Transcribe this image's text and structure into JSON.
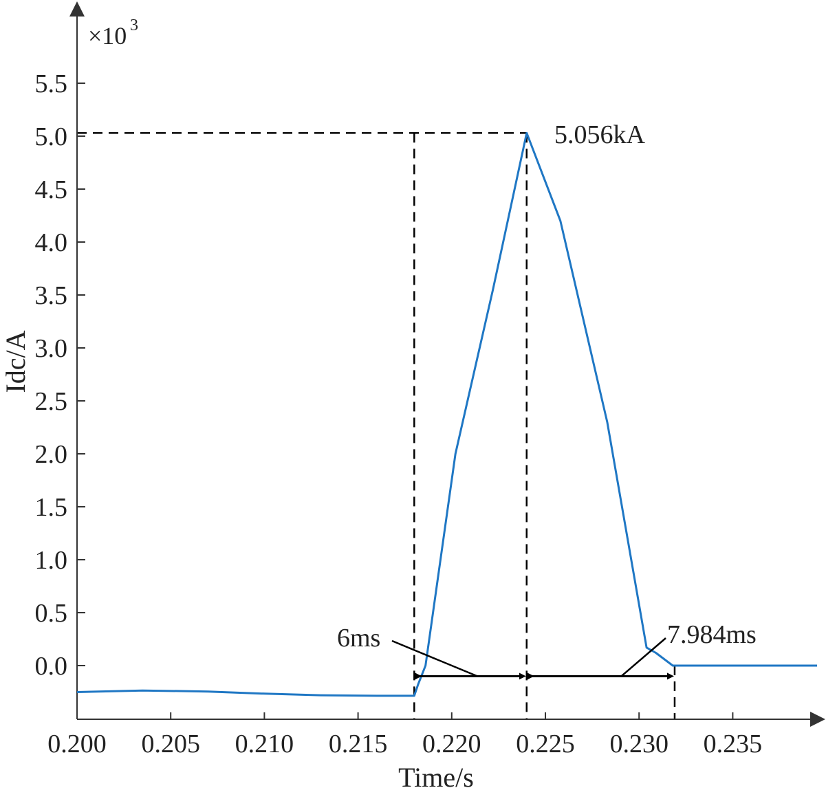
{
  "chart_data": {
    "type": "line",
    "xlabel": "Time/s",
    "ylabel": "Idc/A",
    "y_multiplier": "×10",
    "y_multiplier_exp": "3",
    "xlim": [
      0.2,
      0.2395
    ],
    "ylim": [
      -0.48,
      6.2
    ],
    "x_ticks": [
      0.2,
      0.205,
      0.21,
      0.215,
      0.22,
      0.225,
      0.23,
      0.235
    ],
    "x_tick_labels": [
      "0.200",
      "0.205",
      "0.210",
      "0.215",
      "0.220",
      "0.225",
      "0.230",
      "0.235"
    ],
    "y_ticks": [
      0.0,
      0.5,
      1.0,
      1.5,
      2.0,
      2.5,
      3.0,
      3.5,
      4.0,
      4.5,
      5.0,
      5.5
    ],
    "y_tick_labels": [
      "0.0",
      "0.5",
      "1.0",
      "1.5",
      "2.0",
      "2.5",
      "3.0",
      "3.5",
      "4.0",
      "4.5",
      "5.0",
      "5.5"
    ],
    "series": [
      {
        "color": "#1f77c4",
        "x": [
          0.2,
          0.2035,
          0.207,
          0.21,
          0.213,
          0.216,
          0.218,
          0.2182,
          0.2186,
          0.2202,
          0.2222,
          0.224,
          0.2258,
          0.2283,
          0.2304,
          0.2309,
          0.2318,
          0.2395
        ],
        "y": [
          -0.25,
          -0.235,
          -0.245,
          -0.265,
          -0.28,
          -0.285,
          -0.285,
          -0.18,
          0.0,
          2.0,
          3.55,
          5.03,
          4.2,
          2.3,
          0.17,
          0.12,
          0.0,
          0.0
        ]
      }
    ],
    "annotations": {
      "peak_label": "5.056kA",
      "peak": {
        "x": 0.224,
        "y": 5.03
      },
      "rise_label": "6ms",
      "rise": {
        "x_start": 0.218,
        "x_end": 0.224,
        "y": -0.1
      },
      "fall_label": "7.984ms",
      "fall": {
        "x_start": 0.224,
        "x_end": 0.2319,
        "y": -0.1
      },
      "ref_x_lines": [
        0.218,
        0.224,
        0.2319
      ]
    },
    "grid": false,
    "legend": "none"
  }
}
